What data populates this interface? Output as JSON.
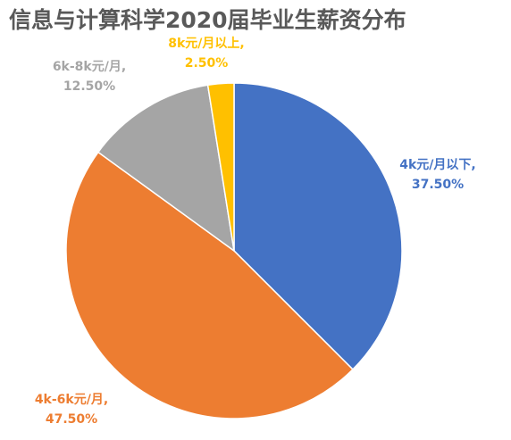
{
  "chart_data": {
    "type": "pie",
    "title": "信息与计算科学2020届毕业生薪资分布",
    "slices": [
      {
        "name": "4k元/月以下",
        "label_line1": "4k元/月以下,",
        "label_line2": "37.50%",
        "value": 37.5,
        "color": "#4472C4"
      },
      {
        "name": "4k-6k元/月",
        "label_line1": "4k-6k元/月,",
        "label_line2": "47.50%",
        "value": 47.5,
        "color": "#ED7D31"
      },
      {
        "name": "6k-8k元/月",
        "label_line1": "6k-8k元/月,",
        "label_line2": "12.50%",
        "value": 12.5,
        "color": "#A5A5A5"
      },
      {
        "name": "8k元/月以上",
        "label_line1": "8k元/月以上,",
        "label_line2": "2.50%",
        "value": 2.5,
        "color": "#FFC000"
      }
    ],
    "legend": "none"
  }
}
